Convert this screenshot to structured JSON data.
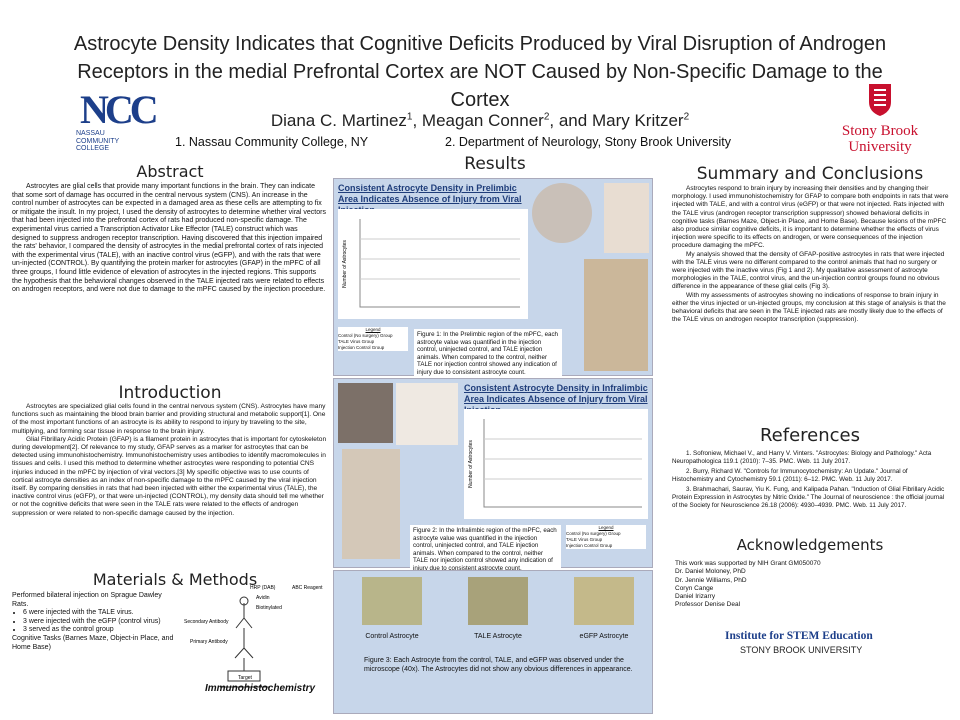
{
  "header": {
    "title": "Astrocyte Density Indicates that Cognitive Deficits Produced by Viral Disruption of Androgen Receptors in the medial Prefrontal Cortex are NOT Caused by Non-Specific Damage to the Cortex",
    "authors": [
      {
        "name": "Diana C. Martinez",
        "sup": "1"
      },
      {
        "name": "Meagan Conner",
        "sup": "2"
      },
      {
        "name": "Mary Kritzer",
        "sup": "2"
      }
    ],
    "author_separators": [
      ", ",
      ", and "
    ],
    "affiliations": [
      "1.  Nassau Community College, NY",
      "2.  Department of Neurology, Stony Brook University"
    ],
    "left_logo": {
      "mark": "NCC",
      "lines": [
        "NASSAU",
        "COMMUNITY",
        "COLLEGE"
      ]
    },
    "right_logo": {
      "lines": [
        "Stony Brook",
        "University"
      ]
    }
  },
  "abstract": {
    "heading": "Abstract",
    "paragraphs": [
      "Astrocytes are glial cells that provide many important functions in the brain.  They can indicate that some sort of damage has occurred in the central nervous system (CNS).  An increase in the control number of astrocytes can be expected in a damaged area as these cells are attempting to fix or mitigate the insult.  In my project, I used the density of astrocytes to determine whether viral vectors that had been injected into the prefrontal cortex of rats had produced non-specific damage.  The experimental virus carried a Transcription Activator Like Effector (TALE) construct which was designed to suppress androgen receptor transcription.  Having discovered that this injection impaired the rats' behavior, I compared the density of astrocytes in the medial prefrontal cortex of rats injected with the experimental virus (TALE), with an inactive control virus (eGFP), and with the rats that were un-injected (CONTROL). By quantifying the protein marker for astrocytes (GFAP) in the mPFC of all three groups, I found little evidence of elevation of astrocytes in the injected regions.  This supports the hypothesis that the behavioral changes observed in the TALE injected rats were related to effects on androgen receptors, and were not due to damage to the mPFC caused by the injection procedure."
    ]
  },
  "introduction": {
    "heading": "Introduction",
    "paragraphs": [
      "Astrocytes are specialized glial cells found in the central nervous system (CNS). Astrocytes have many functions such as maintaining the blood brain barrier and providing structural and metabolic support[1].  One of the most important functions of an astrocyte is its ability to respond to injury by traveling to the site, multiplying, and forming scar tissue in response to the brain injury.",
      "Glial Fibrillary Acidic Protein (GFAP) is a filament protein in astrocytes that is important for cytoskeleton during development[2]. Of relevance to my study, GFAP serves as a marker for astrocytes that can be detected using immunohistochemistry. Immunohistochemistry uses antibodies to identify macromolecules in tissues and cells.  I used this method to determine whether astrocytes were responding to potential CNS injuries induced in the mPFC by injection of viral vectors.[3]  My specific objective was to use counts of cortical astrocyte densities as an index of non-specific damage to the mPFC caused by the viral injection itself.  By comparing densities in rats that had been injected with either the experimental virus (TALE), the inactive control virus (eGFP), or that were un-injected (CONTROL), my density data should tell me whether or not the cognitive deficits that were seen in the TALE rats were related to the effects of androgen suppression or were related to non-specific damage caused by the injection."
    ]
  },
  "methods": {
    "heading": "Materials & Methods",
    "intro": "Performed  bilateral injection on Sprague Dawley Rats.",
    "bullets": [
      "6 were injected with the TALE virus.",
      "3 were injected with the eGFP (control virus)",
      "3 served as the control group"
    ],
    "tasks": "Cognitive Tasks (Barnes Maze, Object-in Place, and Home Base)",
    "diagram": {
      "labels": [
        "HRP (DAB)",
        "Avidin",
        "Biotinylated",
        "ABC Reagent",
        "Secondary Antibody",
        "Primary Antibody",
        "Target"
      ],
      "caption": "Immunohistochemistry"
    }
  },
  "results": {
    "heading": "Results",
    "figure1": {
      "title": "Consistent Astrocyte Density in Prelimbic Area Indicates Absence of Injury from Viral Injection",
      "y_label": "Number of Astrocytes",
      "legend": [
        "Legend",
        "Control (No surgery) Group",
        "TALE Virus Group",
        "Injection Control Group"
      ],
      "caption": "Figure 1: In the Prelimbic region of the mPFC, each astrocyte value was quantified in the injection control, uninjected control, and TALE injection animals.  When compared to the control, neither TALE nor injection control showed any indication of injury due to consistent astrocyte count."
    },
    "figure2": {
      "title": "Consistent Astrocyte Density in Infralimbic Area Indicates Absence of Injury from Viral Injection",
      "y_label": "Number of Astrocytes",
      "legend": [
        "Legend",
        "Control (No surgery) Group",
        "TALE Virus Group",
        "Injection Control Group"
      ],
      "caption": "Figure 2: In the Infralimbic region of the mPFC, each astrocyte value was quantified in the injection control, uninjected control, and TALE injection animals.  When compared to the control, neither TALE nor injection control showed any indication of injury due to consistent astrocyte count."
    },
    "figure3": {
      "labels": [
        "Control Astrocyte",
        "TALE Astrocyte",
        "eGFP Astrocyte"
      ],
      "caption": "Figure 3:   Each Astrocyte from the control, TALE, and eGFP was observed under the microscope (40x).  The Astrocytes did not show any obvious differences in appearance."
    }
  },
  "summary": {
    "heading": "Summary and Conclusions",
    "paragraphs": [
      "Astrocytes respond to brain injury by increasing their densities and by changing their morphology.  I used immunohistochemistry for GFAP to compare both endpoints in rats that were injected with TALE, and with a control virus (eGFP) or that were not injected. Rats injected with the TALE virus (androgen receptor transcription suppressor) showed behavioral deficits in cognitive tasks (Barnes Maze, Object-in Place, and Home Base).  Because lesions of the mPFC also produce similar cognitive deficits, it is important to determine whether the effects of virus injection were specific to its effects on androgen, or were consequences of the injection procedure damaging the mPFC.",
      "My analysis showed that the density of GFAP-positive astrocytes in rats that were injected with the TALE virus were no different compared to the control animals that had no surgery or were injected with the inactive virus (Fig 1 and 2).  My qualitative assessment of astrocyte morphologies in the TALE, control virus, and the un-injection control groups found no obvious difference in the appearance of these glial cells (Fig 3).",
      "With my assessments of astrocytes showing no indications of response to brain injury in either the virus injected or un-injected groups, my conclusion at this stage of analysis is that the behavioral deficits that are seen in the TALE injected rats are mostly likely due to the effects of the TALE virus on androgen receptor transcription (suppression)."
    ]
  },
  "references": {
    "heading": "References",
    "items": [
      "1.  Sofroniew, Michael V., and Harry V. Vinters. \"Astrocytes: Biology and Pathology.\" Acta Neuropathologica 119.1 (2010): 7–35. PMC. Web. 11 July 2017.",
      "2.  Burry, Richard W. \"Controls for Immunocytochemistry: An Update.\" Journal of Histochemistry and Cytochemistry 59.1 (2011): 6–12. PMC. Web. 11 July 2017.",
      "3.  Brahmachari, Saurav, Yiu K. Fung, and Kalipada Pahan. \"Induction of Glial Fibrillary Acidic Protein Expression in Astrocytes by Nitric Oxide.\" The Journal of neuroscience : the official journal of the Society for Neuroscience 26.18 (2006): 4930–4939. PMC. Web. 11 July 2017."
    ]
  },
  "acknowledgements": {
    "heading": "Acknowledgements",
    "lines": [
      "This work was supported by NIH Grant GM050070",
      "Dr. Daniel Moloney, PhD",
      "Dr. Jennie Williams, PhD",
      "Coryn Cange",
      "Daniel Irizarry",
      "Professor Denise Deal"
    ]
  },
  "footer": {
    "institute": "Institute for STEM Education",
    "university": "STONY BROOK UNIVERSITY"
  }
}
